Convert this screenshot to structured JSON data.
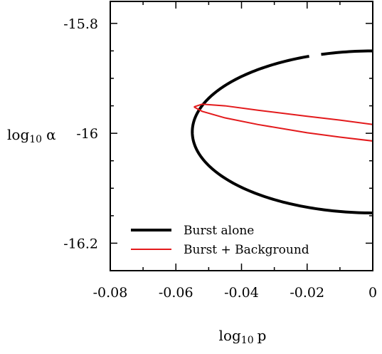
{
  "chart_data": {
    "type": "line",
    "title": "",
    "xlabel": {
      "base": "log",
      "subscript": "10",
      "symbol": "p"
    },
    "ylabel": {
      "base": "log",
      "subscript": "10",
      "symbol": "α"
    },
    "xlim": [
      -0.08,
      0
    ],
    "ylim": [
      -16.25,
      -15.76
    ],
    "x_ticks": [
      -0.08,
      -0.06,
      -0.04,
      -0.02,
      0
    ],
    "x_tick_labels": [
      "-0.08",
      "-0.06",
      "-0.04",
      "-0.02",
      "0"
    ],
    "y_ticks": [
      -15.8,
      -16,
      -16.2
    ],
    "y_tick_labels": [
      "-15.8",
      "-16",
      "-16.2"
    ],
    "grid": false,
    "legend": {
      "placement": "bottom-left",
      "entries": [
        {
          "label": "Burst alone",
          "color": "#000000"
        },
        {
          "label": "Burst + Background",
          "color": "#e31a1c"
        }
      ]
    },
    "series": [
      {
        "name": "Burst alone",
        "color": "#000000",
        "shape": "ellipse",
        "center_x": 0.0005,
        "center_y": -15.9975,
        "radius_x": 0.0555,
        "radius_y": 0.1475,
        "gap_x": [
          -0.0185,
          -0.0163
        ]
      },
      {
        "name": "Burst + Background",
        "color": "#e31a1c",
        "shape": "thin-ellipse",
        "points": [
          [
            -0.0545,
            -15.952
          ],
          [
            -0.052,
            -15.947
          ],
          [
            -0.045,
            -15.95
          ],
          [
            -0.035,
            -15.958
          ],
          [
            -0.02,
            -15.969
          ],
          [
            -0.01,
            -15.976
          ],
          [
            0.0,
            -15.984
          ],
          [
            0.0,
            -16.014
          ],
          [
            -0.01,
            -16.007
          ],
          [
            -0.02,
            -15.999
          ],
          [
            -0.035,
            -15.984
          ],
          [
            -0.045,
            -15.972
          ],
          [
            -0.052,
            -15.96
          ],
          [
            -0.0545,
            -15.952
          ]
        ]
      }
    ]
  }
}
